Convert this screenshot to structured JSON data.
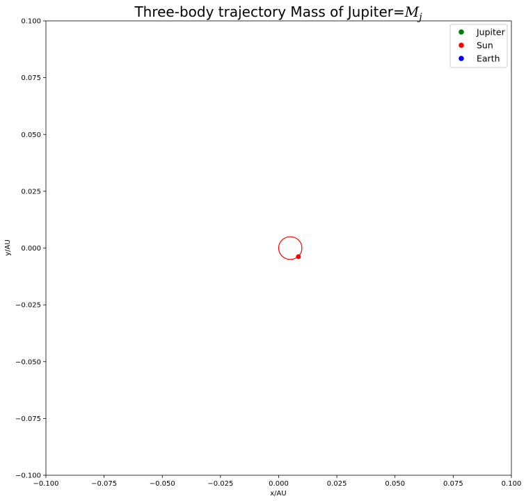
{
  "chart_data": {
    "type": "scatter",
    "title": {
      "prefix": "Three-body trajectory  Mass of Jupiter=",
      "math_base": "M",
      "math_sub": "j"
    },
    "xlabel": "x/AU",
    "ylabel": "y/AU",
    "xlim": [
      -0.1,
      0.1
    ],
    "ylim": [
      -0.1,
      0.1
    ],
    "xticks": [
      -0.1,
      -0.075,
      -0.05,
      -0.025,
      0.0,
      0.025,
      0.05,
      0.075,
      0.1
    ],
    "yticks": [
      -0.1,
      -0.075,
      -0.05,
      -0.025,
      0.0,
      0.025,
      0.05,
      0.075,
      0.1
    ],
    "xtick_labels": [
      "−0.100",
      "−0.075",
      "−0.050",
      "−0.025",
      "0.000",
      "0.025",
      "0.050",
      "0.075",
      "0.100"
    ],
    "ytick_labels": [
      "−0.100",
      "−0.075",
      "−0.050",
      "−0.025",
      "0.000",
      "0.025",
      "0.050",
      "0.075",
      "0.100"
    ],
    "grid": false,
    "legend_position": "top-right",
    "series": [
      {
        "name": "Jupiter",
        "color": "#008000",
        "points": []
      },
      {
        "name": "Sun",
        "color": "#ff0000",
        "points": [
          [
            0.0085,
            -0.0038
          ]
        ]
      },
      {
        "name": "Earth",
        "color": "#0000ff",
        "points": []
      }
    ],
    "trajectory": {
      "color": "#ff0000",
      "center": [
        0.005,
        0.0
      ],
      "radius": 0.005
    }
  }
}
